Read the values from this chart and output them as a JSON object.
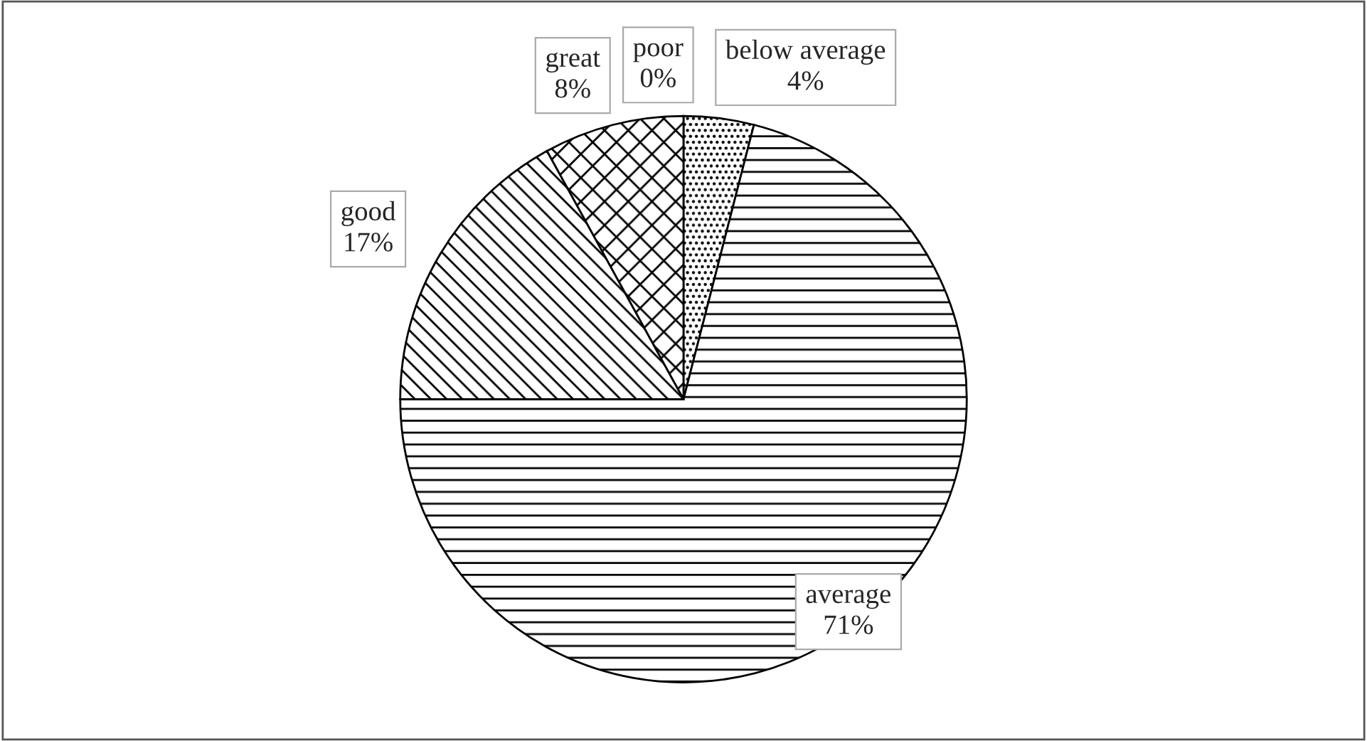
{
  "chart_data": {
    "type": "pie",
    "categories": [
      "poor",
      "below average",
      "average",
      "good",
      "great"
    ],
    "values": [
      0,
      4,
      71,
      17,
      8
    ],
    "value_labels": [
      "0%",
      "4%",
      "71%",
      "17%",
      "8%"
    ],
    "colors": [
      "#000000",
      "#000000",
      "#000000",
      "#000000",
      "#000000"
    ]
  }
}
